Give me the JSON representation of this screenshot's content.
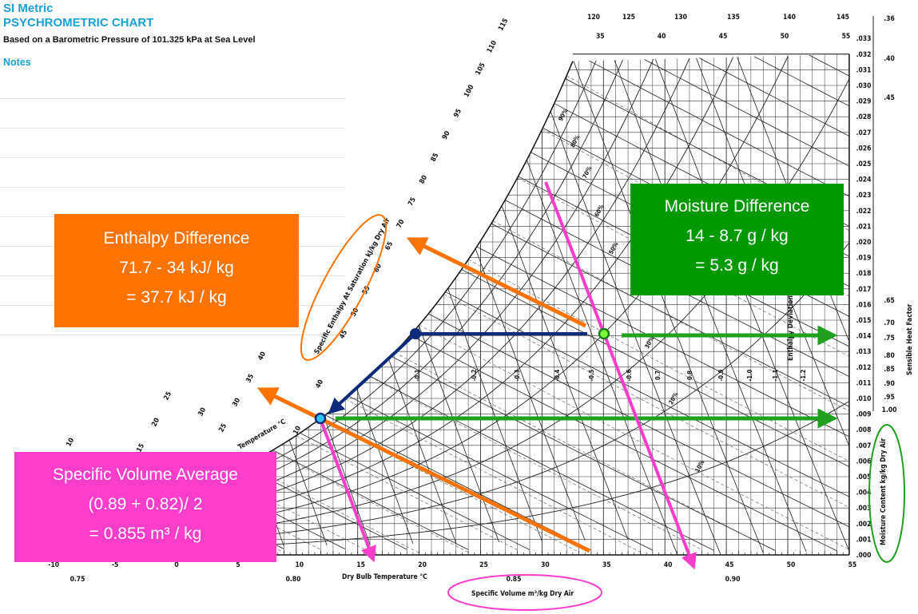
{
  "header": {
    "line1": "SI Metric",
    "line2": "PSYCHROMETRIC CHART",
    "subtitle": "Based on a Barometric Pressure of 101.325 kPa at Sea Level",
    "notes": "Notes"
  },
  "colors": {
    "orange": "#ff7300",
    "green": "#009a00",
    "pink": "#ff3dcc",
    "navy": "#0d2b7a",
    "cyan": "#2ec6f2",
    "lime": "#7dff3a",
    "header_blue": "#1a9fd6"
  },
  "annotations": {
    "enthalpy": {
      "title": "Enthalpy  Difference",
      "line1": "71.7 - 34 kJ/ kg",
      "line2": "=  37.7 kJ / kg"
    },
    "moisture": {
      "title": "Moisture Difference",
      "line1": "14 - 8.7 g / kg",
      "line2": "= 5.3 g / kg"
    },
    "volume": {
      "title": "Specific Volume Average",
      "line1": "(0.89 + 0.82)/ 2",
      "line2": "= 0.855 m³ / kg"
    }
  },
  "chart_data": {
    "type": "psychrometric",
    "title": "PSYCHROMETRIC CHART",
    "xlabel": "Dry  Bulb  Temperature  °C",
    "ylabel": "Moisture  Content  kg/kg  Dry  Air",
    "enthalpy_label": "Specific  Enthalpy  At  Saturation  kJ/kg  Dry  Air",
    "volume_label": "Specific  Volume  m³/kg  Dry  Air",
    "wetbulb_label": "Temperature  °C",
    "shf_label": "Sensible  Heat  Factor",
    "deviation_label": "Enthalpy  Deviation",
    "xlim": [
      -10,
      55
    ],
    "ylim": [
      0,
      0.033
    ],
    "pressure_kpa": 101.325,
    "x_ticks": [
      "-10",
      "-5",
      "0",
      "5",
      "10",
      "15",
      "20",
      "25",
      "30",
      "35",
      "40",
      "45",
      "50",
      "55"
    ],
    "y_ticks": [
      ".000",
      ".001",
      ".002",
      ".003",
      ".004",
      ".005",
      ".006",
      ".007",
      ".008",
      ".009",
      ".010",
      ".011",
      ".012",
      ".013",
      ".014",
      ".015",
      ".016",
      ".017",
      ".018",
      ".019",
      ".020",
      ".021",
      ".022",
      ".023",
      ".024",
      ".025",
      ".026",
      ".027",
      ".028",
      ".029",
      ".030",
      ".031",
      ".032",
      ".033"
    ],
    "volume_ticks": [
      "0.75",
      "0.80",
      "0.85",
      "0.90"
    ],
    "top_enthalpy_ticks": [
      "120",
      "125",
      "130",
      "135",
      "140",
      "145"
    ],
    "top_temp_ticks": [
      "35",
      "40",
      "45",
      "50",
      "55"
    ],
    "enthalpy_ticks": [
      "10",
      "15",
      "20",
      "25",
      "30",
      "35",
      "40",
      "45",
      "50",
      "55",
      "60",
      "65",
      "70",
      "75",
      "80",
      "85",
      "90",
      "95",
      "100",
      "105",
      "110",
      "115"
    ],
    "wetbulb_ticks": [
      "10",
      "25",
      "30",
      "40"
    ],
    "rh_labels": [
      "90%",
      "80%",
      "70%",
      "60%",
      "50%",
      "30%",
      "20%",
      "10%"
    ],
    "deviation_ticks": [
      "-0.1",
      "-0.2",
      "-0.3",
      "-0.4",
      "-0.5",
      "-0.6",
      "0.7",
      "0.8",
      "-0.9",
      "-1.0",
      "-1.1",
      "-1.2"
    ],
    "shf_ticks": [
      ".36",
      ".40",
      ".45",
      ".65",
      ".70",
      ".75",
      ".80",
      ".85",
      ".90",
      ".95",
      "1.00"
    ],
    "rh_curves": [
      10,
      20,
      30,
      40,
      50,
      60,
      70,
      80,
      90,
      100
    ],
    "points": [
      {
        "t": 12,
        "w": 0.0087,
        "h": 34,
        "v": 0.82
      },
      {
        "t": 35,
        "w": 0.014,
        "h": 71.7,
        "v": 0.89
      }
    ],
    "process_corner": {
      "t": 20,
      "w": 0.014
    }
  }
}
